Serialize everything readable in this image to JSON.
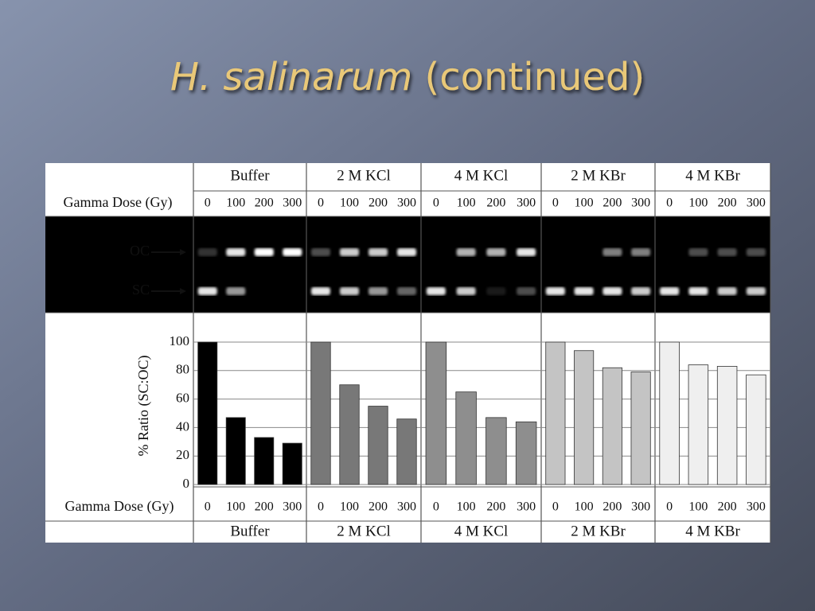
{
  "slide": {
    "title_italic": "H. salinarum",
    "title_rest": "(continued)"
  },
  "gel": {
    "bands": [
      "OC",
      "SC"
    ]
  },
  "chart_data": {
    "type": "bar",
    "y_label": "% Ratio (SC:OC)",
    "x_label": "Gamma Dose (Gy)",
    "categories": [
      "0",
      "100",
      "200",
      "300"
    ],
    "series": [
      {
        "name": "Buffer",
        "color": "#000000",
        "values": [
          100,
          47,
          33,
          29
        ]
      },
      {
        "name": "2 M KCl",
        "color": "#787878",
        "values": [
          100,
          70,
          55,
          46
        ]
      },
      {
        "name": "4 M KCl",
        "color": "#8e8e8e",
        "values": [
          100,
          65,
          47,
          44
        ]
      },
      {
        "name": "2 M KBr",
        "color": "#c4c4c4",
        "values": [
          100,
          94,
          82,
          79
        ]
      },
      {
        "name": "4 M KBr",
        "color": "#efefef",
        "values": [
          100,
          84,
          83,
          77
        ]
      }
    ],
    "ylim": [
      0,
      100
    ],
    "yticks": [
      0,
      20,
      40,
      60,
      80,
      100
    ],
    "grid": true
  }
}
